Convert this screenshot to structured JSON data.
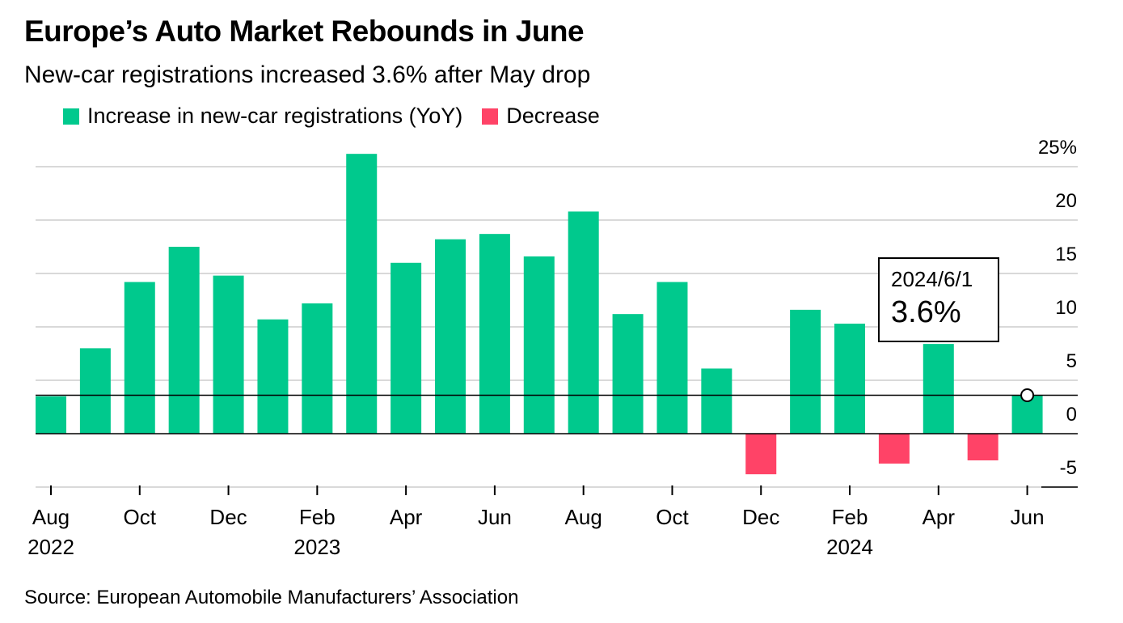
{
  "header": {
    "title": "Europe’s Auto Market Rebounds in June",
    "subtitle": "New-car registrations increased 3.6% after May drop"
  },
  "legend": {
    "increase_label": "Increase in new-car registrations (YoY)",
    "decrease_label": "Decrease"
  },
  "colors": {
    "increase": "#00c98d",
    "decrease": "#ff4367"
  },
  "tooltip": {
    "date": "2024/6/1",
    "value": "3.6%"
  },
  "source": "Source: European Automobile Manufacturers’ Association",
  "chart_data": {
    "type": "bar",
    "x": [
      "2022-08",
      "2022-09",
      "2022-10",
      "2022-11",
      "2022-12",
      "2023-01",
      "2023-02",
      "2023-03",
      "2023-04",
      "2023-05",
      "2023-06",
      "2023-07",
      "2023-08",
      "2023-09",
      "2023-10",
      "2023-11",
      "2023-12",
      "2024-01",
      "2024-02",
      "2024-03",
      "2024-04",
      "2024-05",
      "2024-06"
    ],
    "values": [
      3.5,
      8.0,
      14.2,
      17.5,
      14.8,
      10.7,
      12.2,
      26.2,
      16.0,
      18.2,
      18.7,
      16.6,
      20.8,
      11.2,
      14.2,
      6.1,
      -3.8,
      11.6,
      10.3,
      -2.8,
      8.4,
      -2.5,
      3.6
    ],
    "ylim": [
      -5,
      25
    ],
    "yticks": [
      -5,
      0,
      5,
      10,
      15,
      20,
      25
    ],
    "ytick_labels": [
      "-5",
      "0",
      "5",
      "10",
      "15",
      "20",
      "25%"
    ],
    "xtick_labels": [
      {
        "index": 0,
        "label": "Aug",
        "sub": "2022"
      },
      {
        "index": 2,
        "label": "Oct",
        "sub": ""
      },
      {
        "index": 4,
        "label": "Dec",
        "sub": ""
      },
      {
        "index": 6,
        "label": "Feb",
        "sub": "2023"
      },
      {
        "index": 8,
        "label": "Apr",
        "sub": ""
      },
      {
        "index": 10,
        "label": "Jun",
        "sub": ""
      },
      {
        "index": 12,
        "label": "Aug",
        "sub": ""
      },
      {
        "index": 14,
        "label": "Oct",
        "sub": ""
      },
      {
        "index": 16,
        "label": "Dec",
        "sub": ""
      },
      {
        "index": 18,
        "label": "Feb",
        "sub": "2024"
      },
      {
        "index": 20,
        "label": "Apr",
        "sub": ""
      },
      {
        "index": 22,
        "label": "Jun",
        "sub": ""
      }
    ],
    "reference_value": 3.6,
    "highlight_index": 22,
    "grid": true
  }
}
